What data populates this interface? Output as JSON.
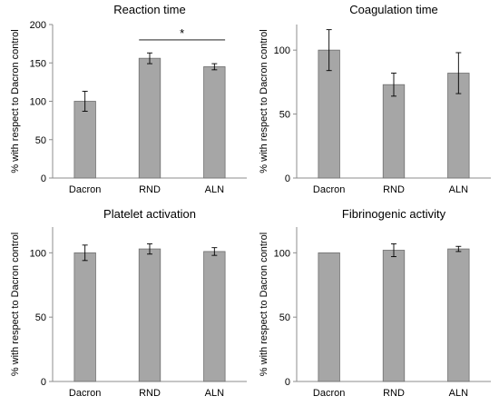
{
  "chart_data": [
    {
      "type": "bar",
      "title": "Reaction time",
      "ylabel": "% with respect to Dacron control",
      "categories": [
        "Dacron",
        "RND",
        "ALN"
      ],
      "values": [
        100,
        156,
        145
      ],
      "errors": [
        13,
        7,
        4
      ],
      "ylim": [
        0,
        200
      ],
      "yticks": [
        0,
        50,
        100,
        150,
        200
      ],
      "ytick_labels": [
        "0",
        "50",
        "100",
        "150",
        "200"
      ],
      "bar_color": "#a6a6a6",
      "significance": {
        "from": "RND",
        "to": "ALN",
        "label": "*",
        "y": 180
      }
    },
    {
      "type": "bar",
      "title": "Coagulation time",
      "ylabel": "% with respect to Dacron control",
      "categories": [
        "Dacron",
        "RND",
        "ALN"
      ],
      "values": [
        100,
        73,
        82
      ],
      "errors": [
        16,
        9,
        16
      ],
      "ylim": [
        0,
        120
      ],
      "yticks": [
        0,
        50,
        100
      ],
      "ytick_labels": [
        "0",
        "50",
        "100"
      ],
      "bar_color": "#a6a6a6"
    },
    {
      "type": "bar",
      "title": "Platelet activation",
      "ylabel": "% with respect to Dacron control",
      "categories": [
        "Dacron",
        "RND",
        "ALN"
      ],
      "values": [
        100,
        103,
        101
      ],
      "errors": [
        6,
        4,
        3
      ],
      "ylim": [
        0,
        120
      ],
      "yticks": [
        0,
        50,
        100
      ],
      "ytick_labels": [
        "0",
        "50",
        "100"
      ],
      "bar_color": "#a6a6a6"
    },
    {
      "type": "bar",
      "title": "Fibrinogenic activity",
      "ylabel": "% with respect to Dacron control",
      "categories": [
        "Dacron",
        "RND",
        "ALN"
      ],
      "values": [
        100,
        102,
        103
      ],
      "errors": [
        0,
        5,
        2
      ],
      "ylim": [
        0,
        120
      ],
      "yticks": [
        0,
        50,
        100
      ],
      "ytick_labels": [
        "0",
        "50",
        "100"
      ],
      "bar_color": "#a6a6a6"
    }
  ]
}
